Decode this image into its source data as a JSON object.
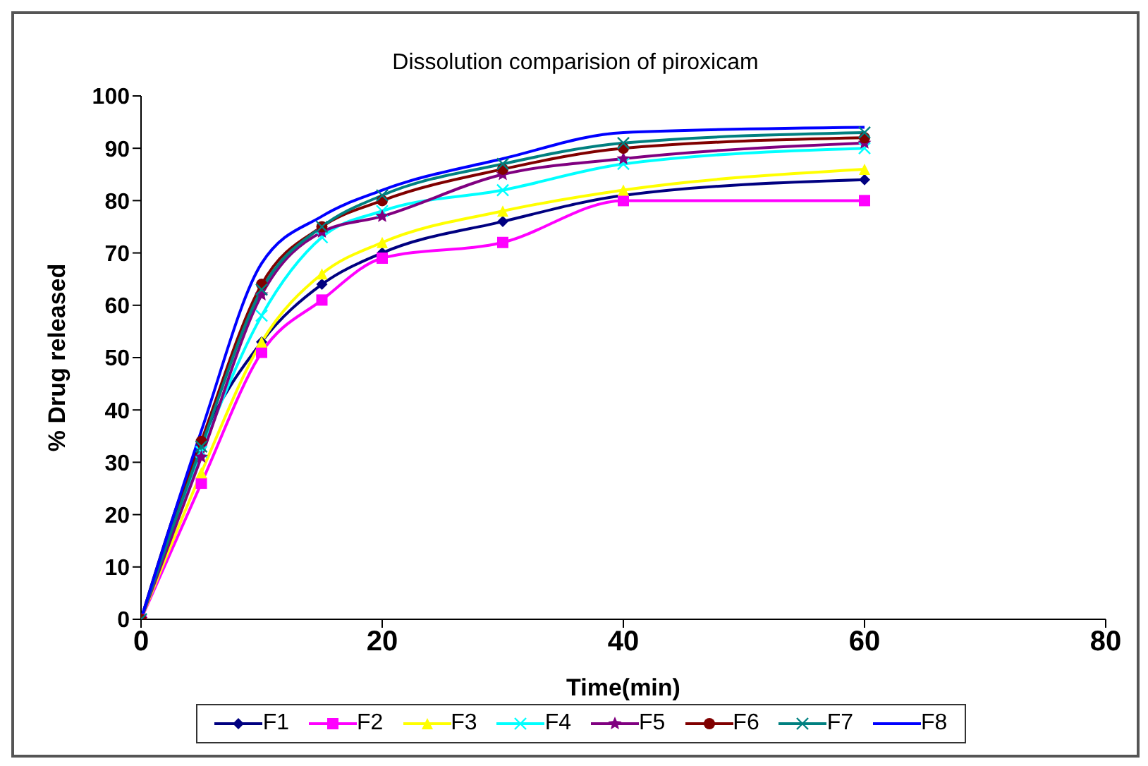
{
  "chart_data": {
    "type": "line",
    "title": "Dissolution comparision of piroxicam",
    "xlabel": "Time(min)",
    "ylabel": "% Drug released",
    "x": [
      0,
      5,
      10,
      15,
      20,
      30,
      40,
      60
    ],
    "xlim": [
      0,
      80
    ],
    "xticks": [
      0,
      20,
      40,
      60,
      80
    ],
    "ylim": [
      0,
      100
    ],
    "yticks": [
      0,
      10,
      20,
      30,
      40,
      50,
      60,
      70,
      80,
      90,
      100
    ],
    "grid": false,
    "legend": "bottom",
    "line_style": "solid",
    "series": [
      {
        "name": "F1",
        "color": "#000080",
        "marker": "diamond",
        "values": [
          0,
          34,
          53,
          64,
          70,
          76,
          81,
          84
        ]
      },
      {
        "name": "F2",
        "color": "#ff00ff",
        "marker": "square",
        "values": [
          0,
          26,
          51,
          61,
          69,
          72,
          80,
          80
        ]
      },
      {
        "name": "F3",
        "color": "#ffff00",
        "marker": "triangle",
        "values": [
          0,
          28,
          53,
          66,
          72,
          78,
          82,
          86
        ]
      },
      {
        "name": "F4",
        "color": "#00ffff",
        "marker": "cross",
        "values": [
          0,
          32,
          58,
          73,
          78,
          82,
          87,
          90
        ]
      },
      {
        "name": "F5",
        "color": "#800080",
        "marker": "star",
        "values": [
          0,
          31,
          62,
          74,
          77,
          85,
          88,
          91
        ]
      },
      {
        "name": "F6",
        "color": "#800000",
        "marker": "circle",
        "values": [
          0,
          34,
          64,
          75,
          80,
          86,
          90,
          92
        ]
      },
      {
        "name": "F7",
        "color": "#008080",
        "marker": "cross",
        "values": [
          0,
          33,
          63,
          75,
          81,
          87,
          91,
          93
        ]
      },
      {
        "name": "F8",
        "color": "#0000ff",
        "marker": "none",
        "values": [
          0,
          36,
          68,
          77,
          82,
          88,
          93,
          94
        ]
      }
    ]
  }
}
